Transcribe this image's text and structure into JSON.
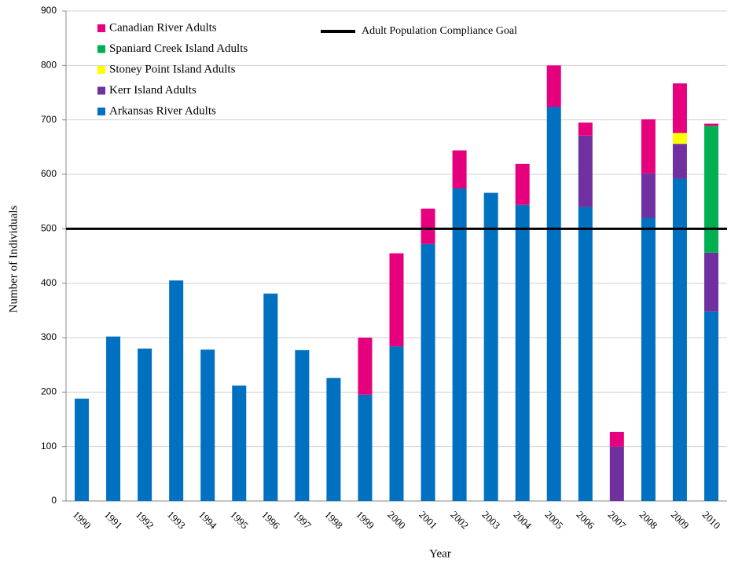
{
  "chart_data": {
    "type": "stacked_bar",
    "x_label": "Year",
    "y_label": "Number of Individuals",
    "categories": [
      "1990",
      "1991",
      "1992",
      "1993",
      "1994",
      "1995",
      "1996",
      "1997",
      "1998",
      "1999",
      "2000",
      "2001",
      "2002",
      "2003",
      "2004",
      "2005",
      "2006",
      "2007",
      "2008",
      "2009",
      "2010"
    ],
    "series": [
      {
        "name": "Arkansas River Adults",
        "color": "#0070c0",
        "values": [
          188,
          302,
          280,
          405,
          278,
          212,
          381,
          277,
          226,
          195,
          284,
          472,
          574,
          566,
          544,
          724,
          540,
          0,
          520,
          592,
          348
        ]
      },
      {
        "name": "Kerr Island Adults",
        "color": "#7030a0",
        "values": [
          0,
          0,
          0,
          0,
          0,
          0,
          0,
          0,
          0,
          0,
          0,
          0,
          0,
          0,
          0,
          0,
          131,
          100,
          82,
          64,
          108
        ]
      },
      {
        "name": "Stoney Point Island Adults",
        "color": "#ffff00",
        "values": [
          0,
          0,
          0,
          0,
          0,
          0,
          0,
          0,
          0,
          0,
          0,
          0,
          0,
          0,
          0,
          0,
          0,
          0,
          0,
          20,
          0
        ]
      },
      {
        "name": "Spaniard Creek Island Adults",
        "color": "#00b050",
        "values": [
          0,
          0,
          0,
          0,
          0,
          0,
          0,
          0,
          0,
          0,
          0,
          0,
          0,
          0,
          0,
          0,
          0,
          0,
          0,
          0,
          233
        ]
      },
      {
        "name": "Canadian River Adults",
        "color": "#e6007e",
        "values": [
          0,
          0,
          0,
          0,
          0,
          0,
          0,
          0,
          0,
          105,
          171,
          65,
          70,
          0,
          75,
          76,
          24,
          27,
          99,
          91,
          4
        ]
      }
    ],
    "goal": {
      "name": "Adult Population Compliance  Goal",
      "value": 500,
      "color": "#000000"
    },
    "ylim": [
      0,
      900
    ],
    "yticks": [
      0,
      100,
      200,
      300,
      400,
      500,
      600,
      700,
      800,
      900
    ],
    "grid": true
  }
}
